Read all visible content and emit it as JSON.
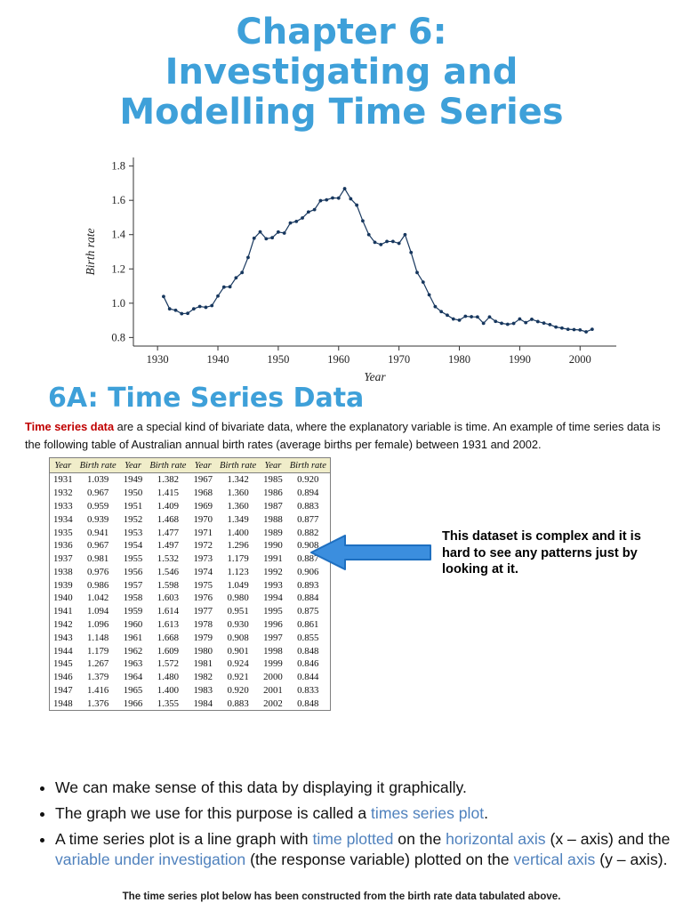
{
  "page": {
    "title_lines": [
      "Chapter 6:",
      "Investigating and",
      "Modelling Time Series"
    ],
    "section_heading": "6A: Time Series Data",
    "intro": {
      "segments": [
        {
          "t": "Time series data",
          "c": "red"
        },
        {
          "t": " are a special kind of bivariate data, where the explanatory variable is time. An example of time series data is the following table of Australian annual birth rates (average births per female) between 1931 and 2002."
        }
      ]
    },
    "callout": "This dataset is complex and it is hard to see any patterns just by looking at it.",
    "bullets": [
      {
        "segments": [
          {
            "t": "We can make sense of this data by displaying it graphically."
          }
        ]
      },
      {
        "segments": [
          {
            "t": "The graph we use for this purpose is called a "
          },
          {
            "t": "times series plot",
            "c": "link"
          },
          {
            "t": "."
          }
        ]
      },
      {
        "segments": [
          {
            "t": "A time series plot is a line graph with "
          },
          {
            "t": "time plotted",
            "c": "link"
          },
          {
            "t": " on the "
          },
          {
            "t": "horizontal axis",
            "c": "link"
          },
          {
            "t": " (x – axis) and the "
          },
          {
            "t": "variable under investigation",
            "c": "link"
          },
          {
            "t": " (the response variable) plotted on the "
          },
          {
            "t": "vertical axis",
            "c": "link"
          },
          {
            "t": " (y – axis)."
          }
        ]
      }
    ],
    "footnote": "The time series plot below has been constructed from the birth rate data tabulated above."
  },
  "table": {
    "columns": [
      "Year",
      "Birth rate",
      "Year",
      "Birth rate",
      "Year",
      "Birth rate",
      "Year",
      "Birth rate"
    ],
    "rows_per_column": 18
  },
  "chart_data": {
    "type": "line",
    "title": "",
    "xlabel": "Year",
    "ylabel": "Birth rate",
    "x": [
      1931,
      1932,
      1933,
      1934,
      1935,
      1936,
      1937,
      1938,
      1939,
      1940,
      1941,
      1942,
      1943,
      1944,
      1945,
      1946,
      1947,
      1948,
      1949,
      1950,
      1951,
      1952,
      1953,
      1954,
      1955,
      1956,
      1957,
      1958,
      1959,
      1960,
      1961,
      1962,
      1963,
      1964,
      1965,
      1966,
      1967,
      1968,
      1969,
      1970,
      1971,
      1972,
      1973,
      1974,
      1975,
      1976,
      1977,
      1978,
      1979,
      1980,
      1981,
      1982,
      1983,
      1984,
      1985,
      1986,
      1987,
      1988,
      1989,
      1990,
      1991,
      1992,
      1993,
      1994,
      1995,
      1996,
      1997,
      1998,
      1999,
      2000,
      2001,
      2002
    ],
    "y": [
      "1.039",
      "0.967",
      "0.959",
      "0.939",
      "0.941",
      "0.967",
      "0.981",
      "0.976",
      "0.986",
      "1.042",
      "1.094",
      "1.096",
      "1.148",
      "1.179",
      "1.267",
      "1.379",
      "1.416",
      "1.376",
      "1.382",
      "1.415",
      "1.409",
      "1.468",
      "1.477",
      "1.497",
      "1.532",
      "1.546",
      "1.598",
      "1.603",
      "1.614",
      "1.613",
      "1.668",
      "1.609",
      "1.572",
      "1.480",
      "1.400",
      "1.355",
      "1.342",
      "1.360",
      "1.360",
      "1.349",
      "1.400",
      "1.296",
      "1.179",
      "1.123",
      "1.049",
      "0.980",
      "0.951",
      "0.930",
      "0.908",
      "0.901",
      "0.924",
      "0.921",
      "0.920",
      "0.883",
      "0.920",
      "0.894",
      "0.883",
      "0.877",
      "0.882",
      "0.908",
      "0.887",
      "0.906",
      "0.893",
      "0.884",
      "0.875",
      "0.861",
      "0.855",
      "0.848",
      "0.846",
      "0.844",
      "0.833",
      "0.848"
    ],
    "xticks": [
      1930,
      1940,
      1950,
      1960,
      1970,
      1980,
      1990,
      2000
    ],
    "yticks": [
      0.8,
      1.0,
      1.2,
      1.4,
      1.6,
      1.8
    ],
    "xlim": [
      1926,
      2006
    ],
    "ylim": [
      0.75,
      1.85
    ],
    "grid": false,
    "legend": "none",
    "line_color": "#17375e",
    "marker": "circle"
  },
  "colors": {
    "title_blue": "#3ea0d9",
    "link_blue": "#4f81bd",
    "red": "#c00000",
    "arrow_blue": "#3b8ede",
    "line_navy": "#17375e",
    "table_header_bg": "#f0edca"
  }
}
